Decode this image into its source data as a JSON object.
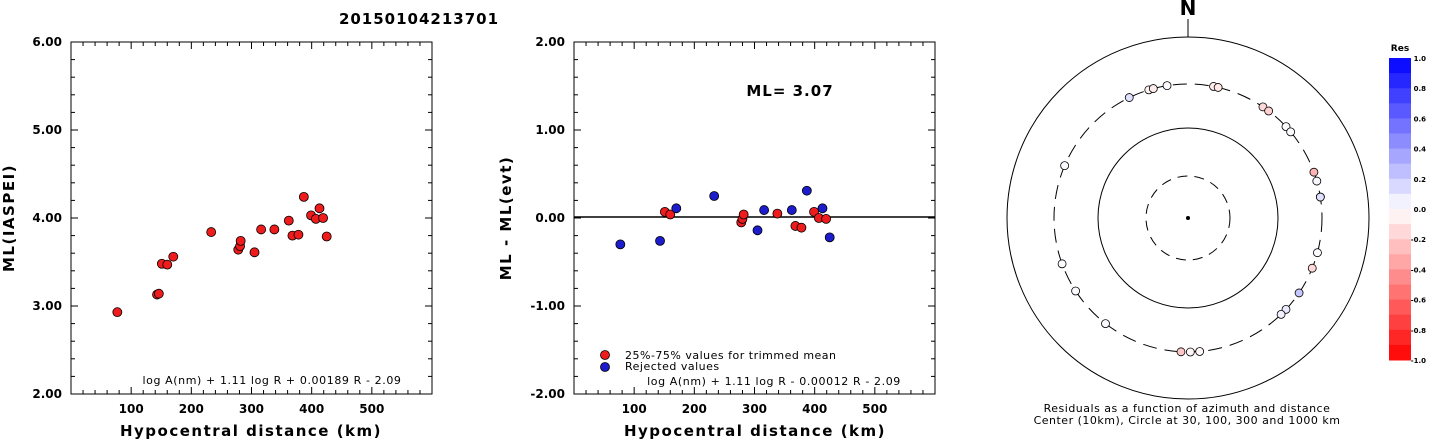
{
  "title": "20150104213701",
  "chart_data": [
    {
      "type": "scatter",
      "ylabel": "ML(IASPEI)",
      "xlabel": "Hypocentral distance (km)",
      "xlim": [
        0,
        600
      ],
      "ylim": [
        2.0,
        6.0
      ],
      "xticks": [
        "100",
        "200",
        "300",
        "400",
        "500"
      ],
      "yticks": [
        "2.00",
        "3.00",
        "4.00",
        "5.00",
        "6.00"
      ],
      "formula": "log A(nm) + 1.11 log R + 0.00189 R - 2.09",
      "color": "#ee1c1c",
      "points": [
        {
          "x": 77,
          "y": 2.93
        },
        {
          "x": 143,
          "y": 3.13
        },
        {
          "x": 146,
          "y": 3.14
        },
        {
          "x": 151,
          "y": 3.48
        },
        {
          "x": 160,
          "y": 3.47
        },
        {
          "x": 170,
          "y": 3.56
        },
        {
          "x": 233,
          "y": 3.84
        },
        {
          "x": 278,
          "y": 3.64
        },
        {
          "x": 281,
          "y": 3.68
        },
        {
          "x": 282,
          "y": 3.74
        },
        {
          "x": 305,
          "y": 3.61
        },
        {
          "x": 316,
          "y": 3.87
        },
        {
          "x": 338,
          "y": 3.87
        },
        {
          "x": 362,
          "y": 3.97
        },
        {
          "x": 368,
          "y": 3.8
        },
        {
          "x": 378,
          "y": 3.81
        },
        {
          "x": 387,
          "y": 4.24
        },
        {
          "x": 399,
          "y": 4.03
        },
        {
          "x": 407,
          "y": 3.99
        },
        {
          "x": 413,
          "y": 4.11
        },
        {
          "x": 419,
          "y": 4.0
        },
        {
          "x": 425,
          "y": 3.79
        }
      ]
    },
    {
      "type": "scatter",
      "ylabel": "ML - ML(evt)",
      "xlabel": "Hypocentral distance (km)",
      "xlim": [
        0,
        600
      ],
      "ylim": [
        -2.0,
        2.0
      ],
      "xticks": [
        "100",
        "200",
        "300",
        "400",
        "500"
      ],
      "yticks": [
        "-2.00",
        "-1.00",
        "0.00",
        "1.00",
        "2.00"
      ],
      "annotation": "ML= 3.07",
      "formula": "log A(nm) + 1.11 log R - 0.00012 R - 2.09",
      "zero_line": true,
      "series": [
        {
          "name": "25%-75% values for trimmed mean",
          "color": "#ee1c1c",
          "points": [
            {
              "x": 151,
              "y": 0.07
            },
            {
              "x": 160,
              "y": 0.04
            },
            {
              "x": 278,
              "y": -0.05
            },
            {
              "x": 280,
              "y": -0.01
            },
            {
              "x": 282,
              "y": 0.04
            },
            {
              "x": 338,
              "y": 0.05
            },
            {
              "x": 368,
              "y": -0.09
            },
            {
              "x": 378,
              "y": -0.11
            },
            {
              "x": 399,
              "y": 0.07
            },
            {
              "x": 407,
              "y": 0.0
            },
            {
              "x": 419,
              "y": -0.01
            }
          ]
        },
        {
          "name": "Rejected values",
          "color": "#1c1ccc",
          "points": [
            {
              "x": 77,
              "y": -0.3
            },
            {
              "x": 143,
              "y": -0.26
            },
            {
              "x": 170,
              "y": 0.11
            },
            {
              "x": 233,
              "y": 0.25
            },
            {
              "x": 305,
              "y": -0.14
            },
            {
              "x": 316,
              "y": 0.09
            },
            {
              "x": 362,
              "y": 0.09
            },
            {
              "x": 387,
              "y": 0.31
            },
            {
              "x": 413,
              "y": 0.11
            },
            {
              "x": 425,
              "y": -0.22
            }
          ]
        }
      ]
    },
    {
      "type": "scatter",
      "subtype": "polar",
      "north_label": "N",
      "caption_line1": "Residuals as a function of azimuth and distance",
      "caption_line2": "Center (10km), Circle at 30, 100, 300 and 1000 km",
      "colorbar": {
        "title": "Res",
        "ticks": [
          "1.0",
          "0.8",
          "0.6",
          "0.4",
          "0.2",
          "0.0",
          "-0.2",
          "-0.4",
          "-0.6",
          "-0.8",
          "-1.0"
        ],
        "range": [
          -1.0,
          1.0
        ]
      },
      "points": [
        {
          "azimuth": 334,
          "res": 0.12
        },
        {
          "azimuth": 343,
          "res": -0.05
        },
        {
          "azimuth": 345,
          "res": -0.07
        },
        {
          "azimuth": 351,
          "res": 0.02
        },
        {
          "azimuth": 11,
          "res": -0.07
        },
        {
          "azimuth": 13,
          "res": -0.09
        },
        {
          "azimuth": 34,
          "res": -0.15
        },
        {
          "azimuth": 37,
          "res": -0.18
        },
        {
          "azimuth": 47,
          "res": 0.01
        },
        {
          "azimuth": 50,
          "res": 0.02
        },
        {
          "azimuth": 70,
          "res": -0.3
        },
        {
          "azimuth": 74,
          "res": 0.03
        },
        {
          "azimuth": 81,
          "res": 0.05
        },
        {
          "azimuth": 81,
          "res": 0.12
        },
        {
          "azimuth": 105,
          "res": 0.02
        },
        {
          "azimuth": 112,
          "res": -0.15
        },
        {
          "azimuth": 124,
          "res": 0.22
        },
        {
          "azimuth": 133,
          "res": 0.08
        },
        {
          "azimuth": 136,
          "res": 0.06
        },
        {
          "azimuth": 175,
          "res": -0.03
        },
        {
          "azimuth": 179,
          "res": -0.03
        },
        {
          "azimuth": 183,
          "res": -0.22
        },
        {
          "azimuth": 218,
          "res": 0.02
        },
        {
          "azimuth": 237,
          "res": 0.02
        },
        {
          "azimuth": 250,
          "res": 0.02
        },
        {
          "azimuth": 293,
          "res": 0.02
        }
      ]
    }
  ]
}
